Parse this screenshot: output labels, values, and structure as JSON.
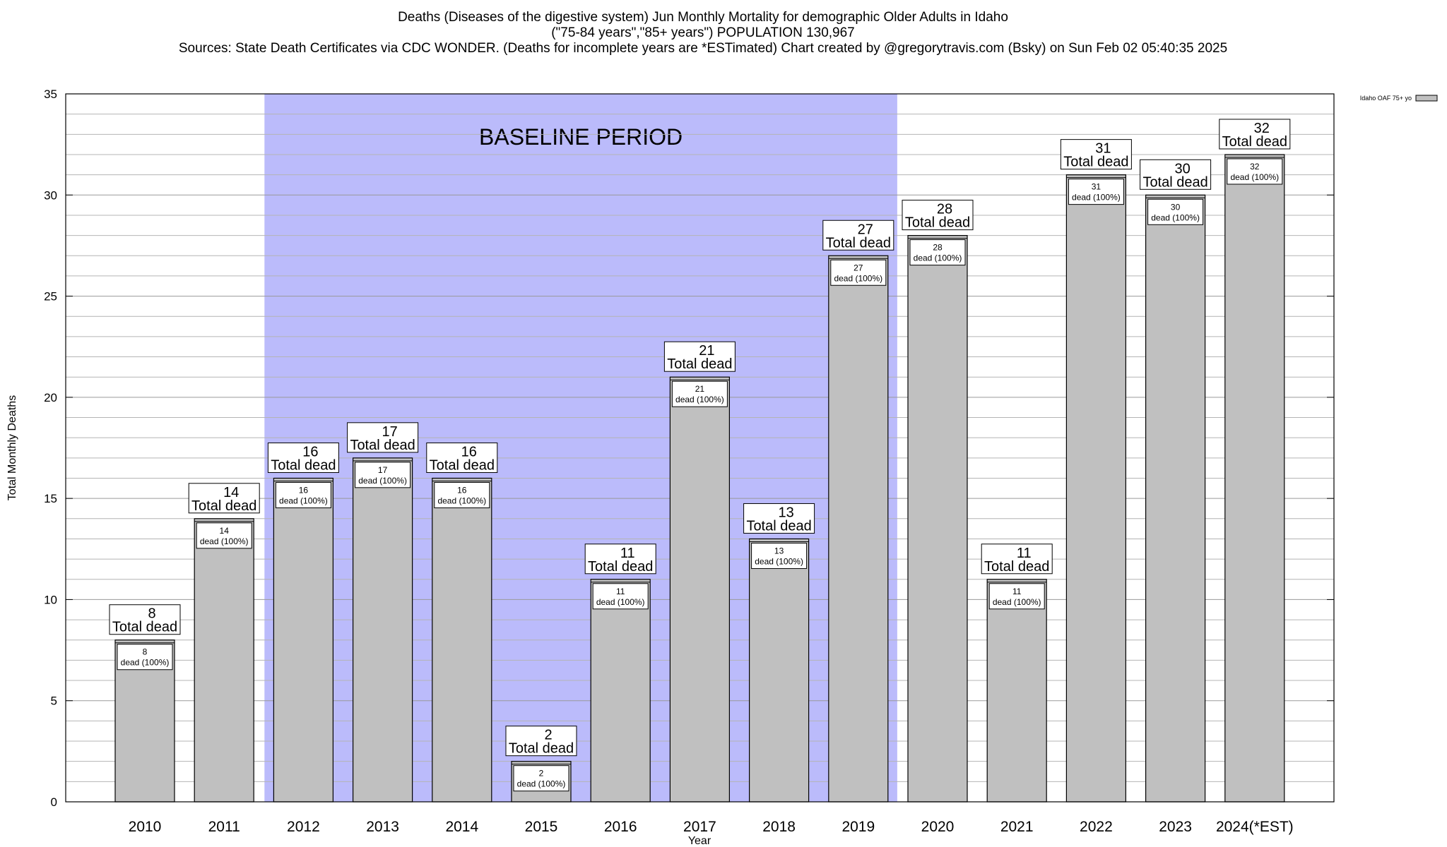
{
  "title": {
    "line1": "Deaths (Diseases of the digestive system) Jun Monthly Mortality for demographic Older Adults in Idaho",
    "line2": "(\"75-84 years\",\"85+ years\") POPULATION 130,967",
    "line3": "Sources: State Death Certificates via CDC WONDER. (Deaths for incomplete years are *ESTimated)                Chart created by @gregorytravis.com (Bsky) on Sun Feb 02 05:40:35 2025"
  },
  "chart_data": {
    "type": "bar",
    "categories": [
      "2010",
      "2011",
      "2012",
      "2013",
      "2014",
      "2015",
      "2016",
      "2017",
      "2018",
      "2019",
      "2020",
      "2021",
      "2022",
      "2023",
      "2024(*EST)"
    ],
    "series": [
      {
        "name": "Idaho OAF 75+ yo",
        "values": [
          8,
          14,
          16,
          17,
          16,
          2,
          11,
          21,
          13,
          27,
          28,
          11,
          31,
          30,
          32
        ]
      }
    ],
    "xlabel": "Year",
    "ylabel": "Total Monthly Deaths",
    "ylim": [
      0,
      35
    ],
    "yticks": [
      0,
      5,
      10,
      15,
      20,
      25,
      30,
      35
    ],
    "grid": true,
    "legend_position": "top-right",
    "baseline": {
      "label": "BASELINE PERIOD",
      "start": "2012",
      "end": "2019"
    },
    "total_label_suffix": "Total dead",
    "inner_label_suffix": "dead (100%)",
    "colors": {
      "bar": "#c0c0c0",
      "baseline": "#bbbbfb",
      "grid": "#b4b4b4"
    }
  }
}
